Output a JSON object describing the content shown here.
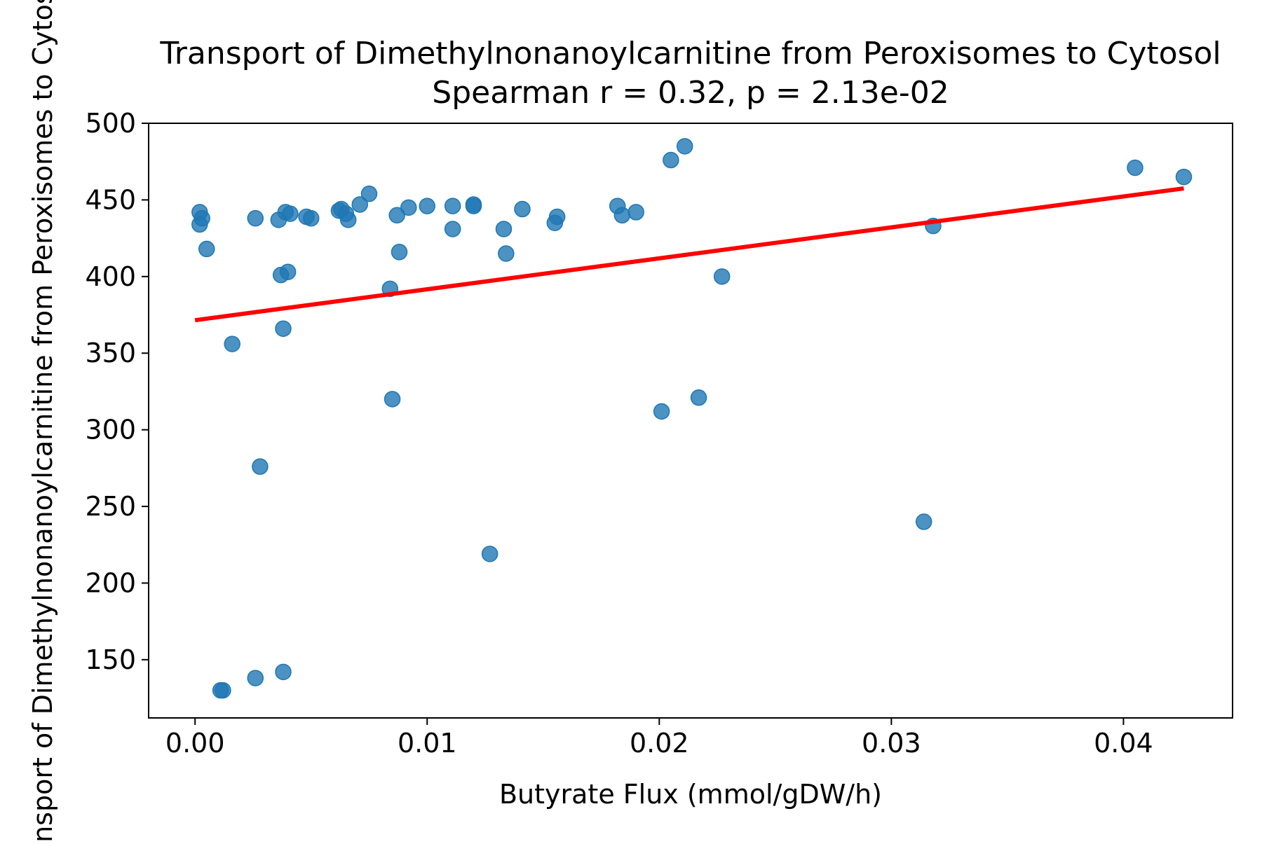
{
  "chart_data": {
    "type": "scatter",
    "title": "Transport of Dimethylnonanoylcarnitine from Peroxisomes to Cytosol",
    "subtitle": "Spearman r = 0.32, p = 2.13e-02",
    "xlabel": "Butyrate Flux (mmol/gDW/h)",
    "ylabel": "Transport of Dimethylnonanoylcarnitine from Peroxisomes to Cytosol",
    "xlim": [
      -0.002,
      0.0447
    ],
    "ylim": [
      112,
      500
    ],
    "xticks": [
      "0.00",
      "0.01",
      "0.02",
      "0.03",
      "0.04"
    ],
    "yticks": [
      "150",
      "200",
      "250",
      "300",
      "350",
      "400",
      "450",
      "500"
    ],
    "grid": false,
    "point_color": "#1f77b4",
    "line_color": "#ff0000",
    "series": [
      {
        "type": "scatter",
        "x": [
          0.0002,
          0.0002,
          0.0003,
          0.0005,
          0.0011,
          0.0012,
          0.0016,
          0.0026,
          0.0026,
          0.0028,
          0.0036,
          0.0037,
          0.0038,
          0.0038,
          0.0039,
          0.004,
          0.0041,
          0.0048,
          0.005,
          0.0062,
          0.0063,
          0.0065,
          0.0066,
          0.0071,
          0.0075,
          0.0084,
          0.0085,
          0.0087,
          0.0088,
          0.0092,
          0.01,
          0.0111,
          0.0111,
          0.012,
          0.012,
          0.0127,
          0.0133,
          0.0134,
          0.0141,
          0.0155,
          0.0156,
          0.0182,
          0.0184,
          0.019,
          0.0201,
          0.0205,
          0.0211,
          0.0217,
          0.0227,
          0.0314,
          0.0318,
          0.0405,
          0.0426
        ],
        "y": [
          434,
          442,
          438,
          418,
          130,
          130,
          356,
          438,
          138,
          276,
          437,
          401,
          366,
          142,
          442,
          403,
          441,
          439,
          438,
          443,
          444,
          441,
          437,
          447,
          454,
          392,
          320,
          440,
          416,
          445,
          446,
          446,
          431,
          447,
          446,
          219,
          431,
          415,
          444,
          435,
          439,
          446,
          440,
          442,
          312,
          476,
          485,
          321,
          400,
          240,
          433,
          471,
          465
        ]
      },
      {
        "type": "line",
        "name": "",
        "x": [
          0.0,
          0.0426
        ],
        "y": [
          371.5,
          457.5
        ]
      }
    ]
  }
}
